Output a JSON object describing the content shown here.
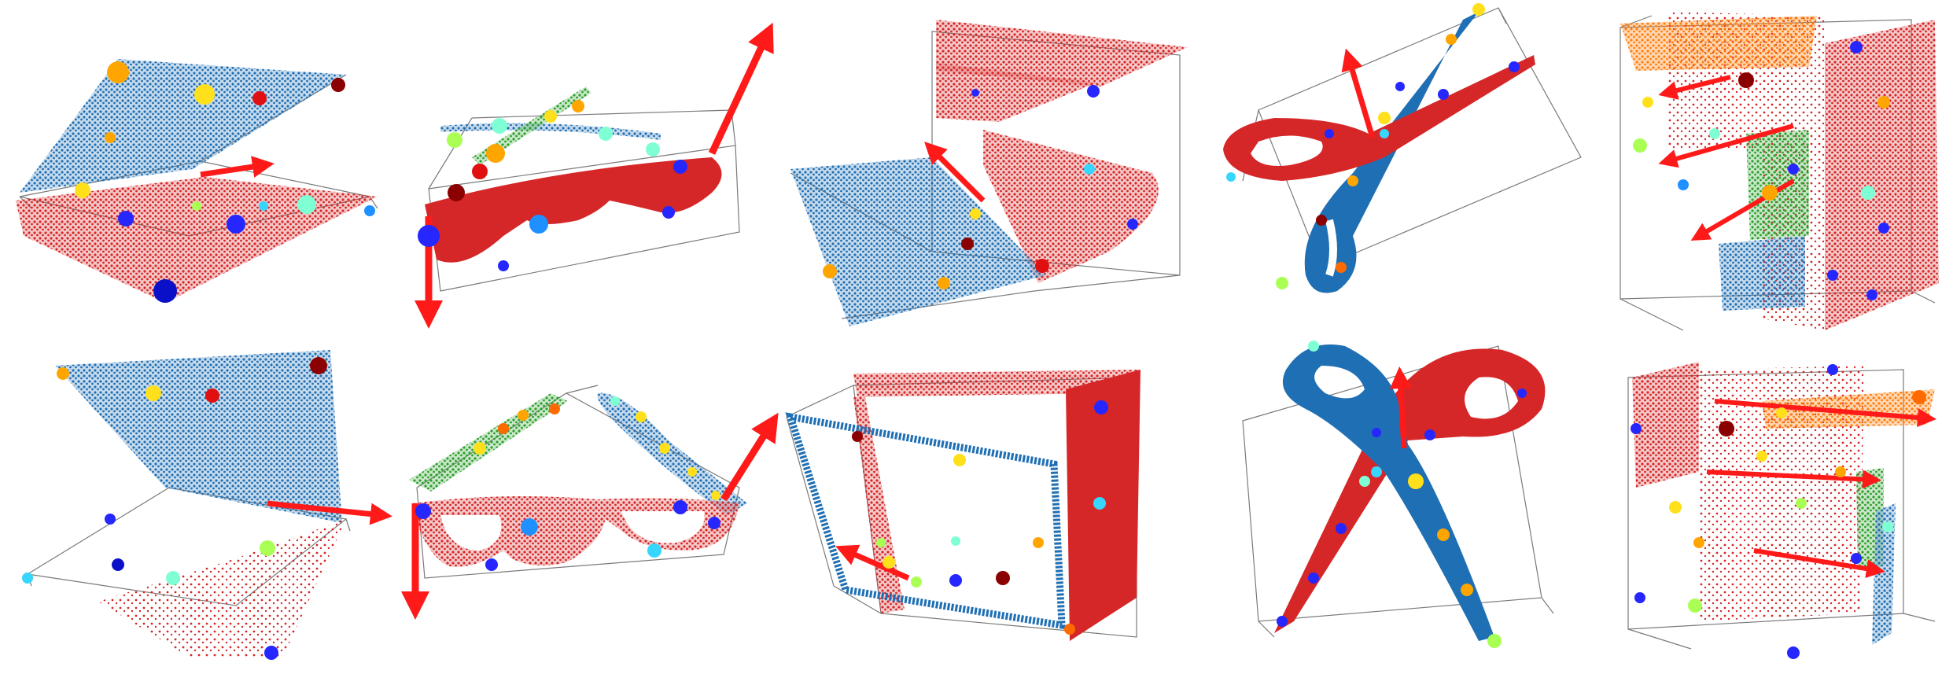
{
  "figure": {
    "rows": 2,
    "columns": 5,
    "background": "#ffffff",
    "colors": {
      "part_blue": "#1f6fb4",
      "part_red": "#d62728",
      "part_green": "#2ca02c",
      "part_orange": "#ff7f0e",
      "arrow": "#ff1a1a",
      "box_line": "#7a7a7a",
      "keypoints": [
        "#0a10c8",
        "#2626ff",
        "#1e90ff",
        "#36d6ff",
        "#7fffd4",
        "#aaff55",
        "#ffe01a",
        "#ffa500",
        "#ff6a00",
        "#e01010",
        "#8b0000"
      ]
    },
    "panels": [
      {
        "id": "laptop-open",
        "object": "laptop",
        "row": 1,
        "col": 1
      },
      {
        "id": "glasses-folded",
        "object": "eyeglasses",
        "row": 1,
        "col": 2
      },
      {
        "id": "box-open",
        "object": "box",
        "row": 1,
        "col": 3
      },
      {
        "id": "scissors-closed",
        "object": "scissors",
        "row": 1,
        "col": 4
      },
      {
        "id": "cabinet-1",
        "object": "cabinet",
        "row": 1,
        "col": 5
      },
      {
        "id": "laptop-wide",
        "object": "laptop",
        "row": 2,
        "col": 1
      },
      {
        "id": "glasses-open",
        "object": "eyeglasses",
        "row": 2,
        "col": 2
      },
      {
        "id": "box-frame",
        "object": "box",
        "row": 2,
        "col": 3
      },
      {
        "id": "scissors-open",
        "object": "scissors",
        "row": 2,
        "col": 4
      },
      {
        "id": "cabinet-2",
        "object": "cabinet",
        "row": 2,
        "col": 5
      }
    ]
  }
}
